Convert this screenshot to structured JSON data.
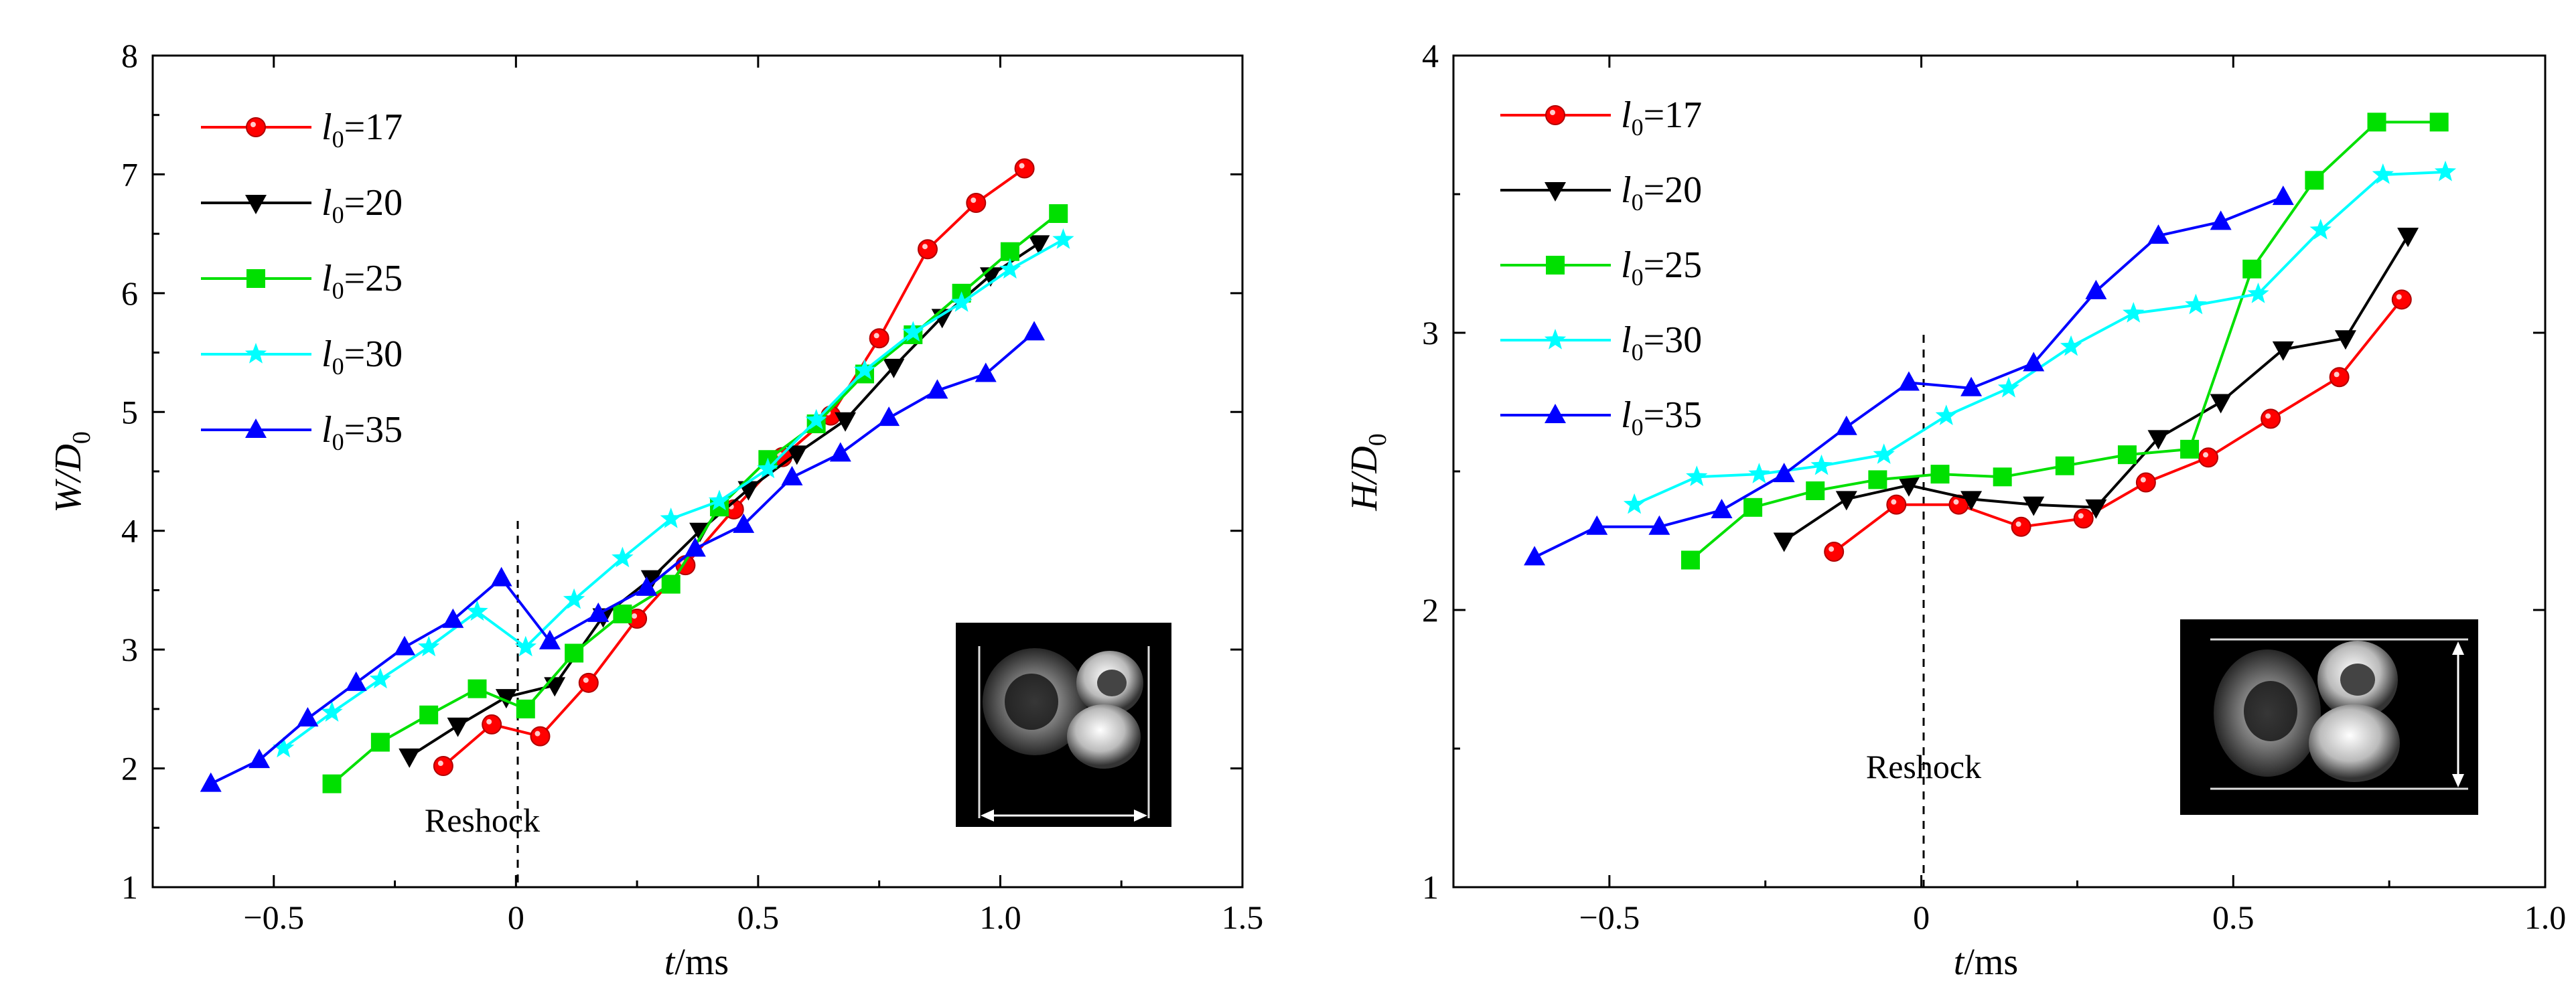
{
  "chart_data": [
    {
      "type": "line",
      "ylabel_main": "W/D",
      "ylabel_sub": "0",
      "xlabel_main": "t",
      "xlabel_unit": "/ms",
      "xlim": [
        -0.75,
        1.5
      ],
      "ylim": [
        1,
        8
      ],
      "xticks": [
        -0.5,
        0,
        0.5,
        1.0,
        1.5
      ],
      "xtick_labels": [
        "−0.5",
        "0",
        "0.5",
        "1.0",
        "1.5"
      ],
      "yticks": [
        1,
        2,
        3,
        4,
        5,
        6,
        7,
        8
      ],
      "ytick_labels": [
        "1",
        "2",
        "3",
        "4",
        "5",
        "6",
        "7",
        "8"
      ],
      "annotation": "Reshock",
      "inset_label": "W",
      "legend_position": "top-left",
      "series": [
        {
          "name_main": "l",
          "name_sub": "0",
          "name_rest": "=17",
          "color": "#ff0000",
          "marker": "circle",
          "points": [
            [
              -0.15,
              2.02
            ],
            [
              -0.05,
              2.37
            ],
            [
              0.05,
              2.27
            ],
            [
              0.15,
              2.72
            ],
            [
              0.25,
              3.26
            ],
            [
              0.35,
              3.71
            ],
            [
              0.45,
              4.18
            ],
            [
              0.55,
              4.62
            ],
            [
              0.65,
              4.97
            ],
            [
              0.75,
              5.62
            ],
            [
              0.85,
              6.37
            ],
            [
              0.95,
              6.76
            ],
            [
              1.05,
              7.05
            ]
          ]
        },
        {
          "name_main": "l",
          "name_sub": "0",
          "name_rest": "=20",
          "color": "#000000",
          "marker": "triangle-down",
          "points": [
            [
              -0.22,
              2.1
            ],
            [
              -0.12,
              2.36
            ],
            [
              -0.02,
              2.6
            ],
            [
              0.08,
              2.7
            ],
            [
              0.18,
              3.28
            ],
            [
              0.28,
              3.6
            ],
            [
              0.38,
              4.0
            ],
            [
              0.48,
              4.35
            ],
            [
              0.58,
              4.65
            ],
            [
              0.68,
              4.93
            ],
            [
              0.78,
              5.38
            ],
            [
              0.88,
              5.8
            ],
            [
              0.98,
              6.15
            ],
            [
              1.08,
              6.42
            ]
          ]
        },
        {
          "name_main": "l",
          "name_sub": "0",
          "name_rest": "=25",
          "color": "#00e000",
          "marker": "square",
          "points": [
            [
              -0.38,
              1.87
            ],
            [
              -0.28,
              2.22
            ],
            [
              -0.18,
              2.45
            ],
            [
              -0.08,
              2.67
            ],
            [
              0.02,
              2.5
            ],
            [
              0.12,
              2.97
            ],
            [
              0.22,
              3.3
            ],
            [
              0.32,
              3.55
            ],
            [
              0.42,
              4.2
            ],
            [
              0.52,
              4.6
            ],
            [
              0.62,
              4.9
            ],
            [
              0.72,
              5.32
            ],
            [
              0.82,
              5.65
            ],
            [
              0.92,
              6.0
            ],
            [
              1.02,
              6.35
            ],
            [
              1.12,
              6.67
            ]
          ]
        },
        {
          "name_main": "l",
          "name_sub": "0",
          "name_rest": "=30",
          "color": "#00ffff",
          "marker": "star",
          "points": [
            [
              -0.48,
              2.17
            ],
            [
              -0.38,
              2.47
            ],
            [
              -0.28,
              2.75
            ],
            [
              -0.18,
              3.02
            ],
            [
              -0.08,
              3.32
            ],
            [
              0.02,
              3.02
            ],
            [
              0.12,
              3.42
            ],
            [
              0.22,
              3.77
            ],
            [
              0.32,
              4.1
            ],
            [
              0.42,
              4.25
            ],
            [
              0.52,
              4.52
            ],
            [
              0.62,
              4.93
            ],
            [
              0.72,
              5.35
            ],
            [
              0.82,
              5.67
            ],
            [
              0.92,
              5.92
            ],
            [
              1.02,
              6.2
            ],
            [
              1.13,
              6.45
            ]
          ]
        },
        {
          "name_main": "l",
          "name_sub": "0",
          "name_rest": "=35",
          "color": "#0000ff",
          "marker": "triangle-up",
          "points": [
            [
              -0.63,
              1.87
            ],
            [
              -0.53,
              2.07
            ],
            [
              -0.43,
              2.42
            ],
            [
              -0.33,
              2.72
            ],
            [
              -0.23,
              3.02
            ],
            [
              -0.13,
              3.25
            ],
            [
              -0.03,
              3.6
            ],
            [
              0.07,
              3.07
            ],
            [
              0.17,
              3.3
            ],
            [
              0.27,
              3.52
            ],
            [
              0.37,
              3.85
            ],
            [
              0.47,
              4.05
            ],
            [
              0.57,
              4.45
            ],
            [
              0.67,
              4.65
            ],
            [
              0.77,
              4.95
            ],
            [
              0.87,
              5.18
            ],
            [
              0.97,
              5.32
            ],
            [
              1.07,
              5.67
            ]
          ]
        }
      ]
    },
    {
      "type": "line",
      "ylabel_main": "H/D",
      "ylabel_sub": "0",
      "xlabel_main": "t",
      "xlabel_unit": "/ms",
      "xlim": [
        -0.75,
        1.0
      ],
      "ylim": [
        1,
        4
      ],
      "xticks": [
        -0.5,
        0,
        0.5,
        1.0
      ],
      "xtick_labels": [
        "−0.5",
        "0",
        "0.5",
        "1.0"
      ],
      "yticks": [
        1,
        2,
        3,
        4
      ],
      "ytick_labels": [
        "1",
        "2",
        "3",
        "4"
      ],
      "annotation": "Reshock",
      "inset_label": "H",
      "legend_position": "top-left",
      "series": [
        {
          "name_main": "l",
          "name_sub": "0",
          "name_rest": "=17",
          "color": "#ff0000",
          "marker": "circle",
          "points": [
            [
              -0.14,
              2.21
            ],
            [
              -0.04,
              2.38
            ],
            [
              0.06,
              2.38
            ],
            [
              0.16,
              2.3
            ],
            [
              0.26,
              2.33
            ],
            [
              0.36,
              2.46
            ],
            [
              0.46,
              2.55
            ],
            [
              0.56,
              2.69
            ],
            [
              0.67,
              2.84
            ],
            [
              0.77,
              3.12
            ]
          ]
        },
        {
          "name_main": "l",
          "name_sub": "0",
          "name_rest": "=20",
          "color": "#000000",
          "marker": "triangle-down",
          "points": [
            [
              -0.22,
              2.25
            ],
            [
              -0.12,
              2.4
            ],
            [
              -0.02,
              2.45
            ],
            [
              0.08,
              2.4
            ],
            [
              0.18,
              2.38
            ],
            [
              0.28,
              2.37
            ],
            [
              0.38,
              2.62
            ],
            [
              0.48,
              2.75
            ],
            [
              0.58,
              2.94
            ],
            [
              0.68,
              2.98
            ],
            [
              0.78,
              3.35
            ]
          ]
        },
        {
          "name_main": "l",
          "name_sub": "0",
          "name_rest": "=25",
          "color": "#00e000",
          "marker": "square",
          "points": [
            [
              -0.37,
              2.18
            ],
            [
              -0.27,
              2.37
            ],
            [
              -0.17,
              2.43
            ],
            [
              -0.07,
              2.47
            ],
            [
              0.03,
              2.49
            ],
            [
              0.13,
              2.48
            ],
            [
              0.23,
              2.52
            ],
            [
              0.33,
              2.56
            ],
            [
              0.43,
              2.58
            ],
            [
              0.53,
              3.23
            ],
            [
              0.63,
              3.55
            ],
            [
              0.73,
              3.76
            ],
            [
              0.83,
              3.76
            ]
          ]
        },
        {
          "name_main": "l",
          "name_sub": "0",
          "name_rest": "=30",
          "color": "#00ffff",
          "marker": "star",
          "points": [
            [
              -0.46,
              2.38
            ],
            [
              -0.36,
              2.48
            ],
            [
              -0.26,
              2.49
            ],
            [
              -0.16,
              2.52
            ],
            [
              -0.06,
              2.56
            ],
            [
              0.04,
              2.7
            ],
            [
              0.14,
              2.8
            ],
            [
              0.24,
              2.95
            ],
            [
              0.34,
              3.07
            ],
            [
              0.44,
              3.1
            ],
            [
              0.54,
              3.14
            ],
            [
              0.64,
              3.37
            ],
            [
              0.74,
              3.57
            ],
            [
              0.84,
              3.58
            ]
          ]
        },
        {
          "name_main": "l",
          "name_sub": "0",
          "name_rest": "=35",
          "color": "#0000ff",
          "marker": "triangle-up",
          "points": [
            [
              -0.62,
              2.19
            ],
            [
              -0.52,
              2.3
            ],
            [
              -0.42,
              2.3
            ],
            [
              -0.32,
              2.36
            ],
            [
              -0.22,
              2.49
            ],
            [
              -0.12,
              2.66
            ],
            [
              -0.02,
              2.82
            ],
            [
              0.08,
              2.8
            ],
            [
              0.18,
              2.89
            ],
            [
              0.28,
              3.15
            ],
            [
              0.38,
              3.35
            ],
            [
              0.48,
              3.4
            ],
            [
              0.58,
              3.49
            ]
          ]
        }
      ]
    }
  ]
}
